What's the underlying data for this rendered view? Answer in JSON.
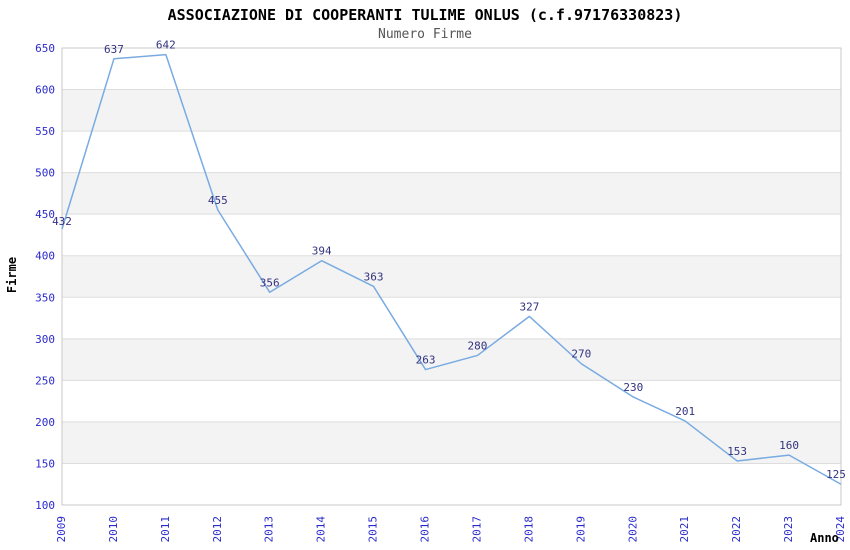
{
  "title": "ASSOCIAZIONE DI COOPERANTI TULIME ONLUS (c.f.97176330823)",
  "subtitle": "Numero Firme",
  "chart_data": {
    "type": "line",
    "title": "ASSOCIAZIONE DI COOPERANTI TULIME ONLUS (c.f.97176330823)",
    "subtitle": "Numero Firme",
    "xlabel": "Anno",
    "ylabel": "Firme",
    "x": [
      2009,
      2010,
      2011,
      2012,
      2013,
      2014,
      2015,
      2016,
      2017,
      2018,
      2019,
      2020,
      2021,
      2022,
      2023,
      2024
    ],
    "values": [
      432,
      637,
      642,
      455,
      356,
      394,
      363,
      263,
      280,
      327,
      270,
      230,
      201,
      153,
      160,
      125
    ],
    "series_name": "Numero Firme",
    "ylim": [
      100,
      650
    ],
    "ytick_step": 50,
    "grid": "horizontal-gridlines-with-alternating-bands",
    "legend": "none",
    "data_labels_visible": true,
    "x_tick_rotation_deg": -90
  },
  "colors": {
    "line": "#79abe2",
    "tick_label": "#2a2acc",
    "data_label": "#333380",
    "band_fill": "#f3f3f3",
    "gridline": "#dddddd",
    "plot_border": "#c9c9c9",
    "title": "#000000",
    "subtitle": "#555555",
    "background": "#ffffff"
  }
}
